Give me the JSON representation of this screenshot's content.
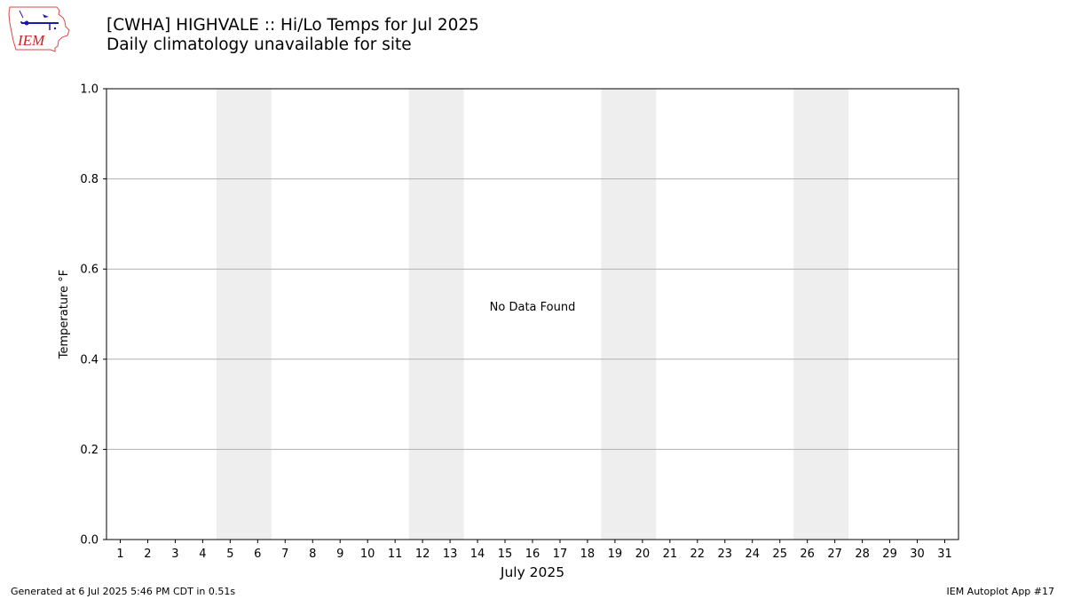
{
  "logo": {
    "text": "IEM",
    "icon": "iem-iowa-logo-icon",
    "colors": {
      "outline": "#d44a4a",
      "text": "#cc2222",
      "instrument": "#1a1aaa"
    }
  },
  "header": {
    "title": "[CWHA] HIGHVALE :: Hi/Lo Temps for Jul 2025",
    "subtitle": "Daily climatology unavailable for site"
  },
  "chart_data": {
    "type": "bar",
    "title": "[CWHA] HIGHVALE :: Hi/Lo Temps for Jul 2025",
    "subtitle": "Daily climatology unavailable for site",
    "xlabel": "July 2025",
    "ylabel": "Temperature °F",
    "categories": [
      "1",
      "2",
      "3",
      "4",
      "5",
      "6",
      "7",
      "8",
      "9",
      "10",
      "11",
      "12",
      "13",
      "14",
      "15",
      "16",
      "17",
      "18",
      "19",
      "20",
      "21",
      "22",
      "23",
      "24",
      "25",
      "26",
      "27",
      "28",
      "29",
      "30",
      "31"
    ],
    "xlim": [
      0.5,
      31.5
    ],
    "ylim": [
      0,
      1
    ],
    "yticks": [
      0.0,
      0.2,
      0.4,
      0.6,
      0.8,
      1.0
    ],
    "ytick_labels": [
      "0.0",
      "0.2",
      "0.4",
      "0.6",
      "0.8",
      "1.0"
    ],
    "grid": "y",
    "weekend_bands": [
      [
        5,
        6
      ],
      [
        12,
        13
      ],
      [
        19,
        20
      ],
      [
        26,
        27
      ]
    ],
    "series": [],
    "annotation": "No Data Found",
    "colors": {
      "weekend_band": "#eeeeee",
      "grid": "#b0b0b0",
      "axes": "#000000"
    }
  },
  "footer": {
    "left": "Generated at 6 Jul 2025 5:46 PM CDT in 0.51s",
    "right": "IEM Autoplot App #17"
  }
}
